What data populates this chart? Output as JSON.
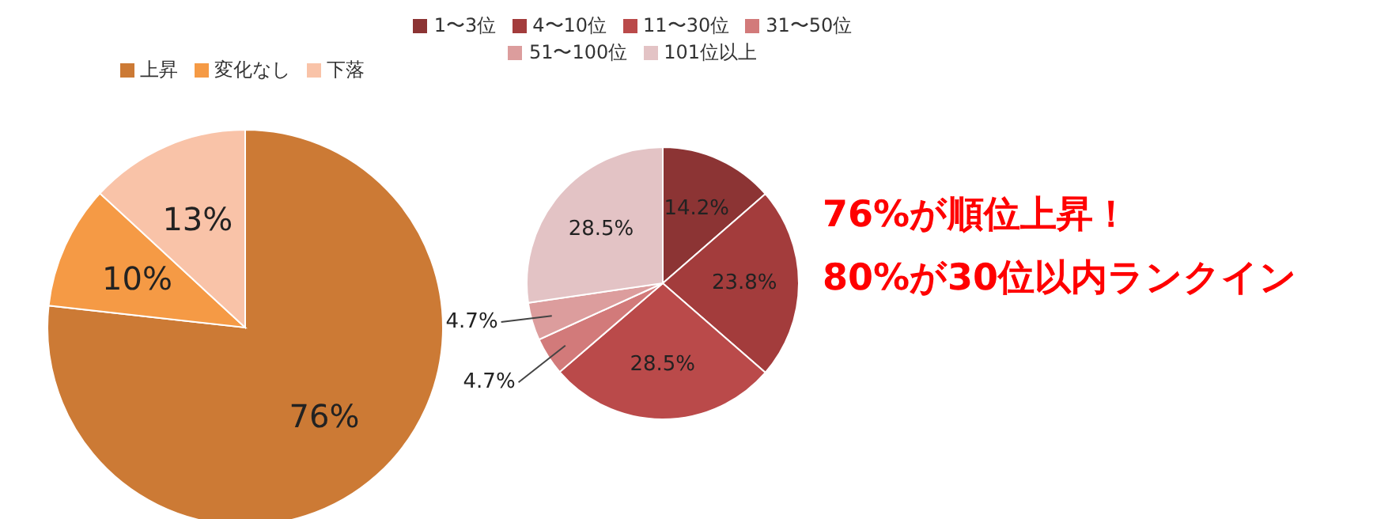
{
  "chart_data": [
    {
      "type": "pie",
      "categories": [
        "上昇",
        "変化なし",
        "下落"
      ],
      "values": [
        76,
        10,
        13
      ],
      "value_labels": [
        "76%",
        "10%",
        "13%"
      ],
      "colors": [
        "#cc7a35",
        "#f59a45",
        "#f9c3a8"
      ],
      "legend": "top"
    },
    {
      "type": "pie",
      "categories": [
        "1〜3位",
        "4〜10位",
        "11〜30位",
        "31〜50位",
        "51〜100位",
        "101位以上"
      ],
      "values": [
        14.2,
        23.8,
        28.5,
        4.7,
        4.7,
        28.5
      ],
      "value_labels": [
        "14.2%",
        "23.8%",
        "28.5%",
        "4.7%",
        "4.7%",
        "28.5%"
      ],
      "colors": [
        "#8c3434",
        "#a33c3c",
        "#ba4a4a",
        "#d27a7a",
        "#dc9d9d",
        "#e3c3c5"
      ],
      "legend": "top"
    },
    {
      "type": "other",
      "annotations": [
        "76%が順位上昇！",
        "80%が30位以内ランクイン"
      ]
    }
  ]
}
